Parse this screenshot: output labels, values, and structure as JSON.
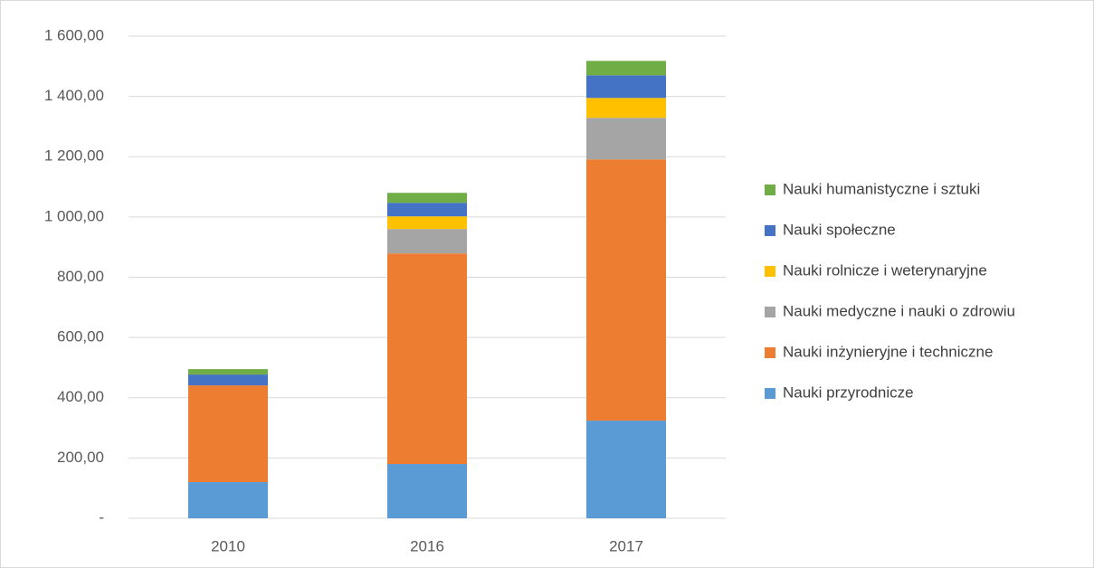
{
  "chart_data": {
    "type": "stacked_bar",
    "categories": [
      "2010",
      "2016",
      "2017"
    ],
    "series": [
      {
        "name": "Nauki przyrodnicze",
        "color": "#5b9bd5",
        "values": [
          120,
          180,
          324
        ]
      },
      {
        "name": "Nauki inżynieryjne i techniczne",
        "color": "#ed7d31",
        "values": [
          321,
          699,
          867
        ]
      },
      {
        "name": "Nauki medyczne i nauki o zdrowiu",
        "color": "#a5a5a5",
        "values": [
          0,
          81,
          138
        ]
      },
      {
        "name": "Nauki rolnicze i weterynaryjne",
        "color": "#ffc000",
        "values": [
          0,
          42,
          66
        ]
      },
      {
        "name": "Nauki społeczne",
        "color": "#4472c4",
        "values": [
          36,
          45,
          75
        ]
      },
      {
        "name": "Nauki humanistyczne i sztuki",
        "color": "#70ad47",
        "values": [
          18,
          33,
          48
        ]
      }
    ],
    "ylim": [
      0,
      1600
    ],
    "yticks": [
      {
        "value": 0,
        "label": "-"
      },
      {
        "value": 200,
        "label": "200,00"
      },
      {
        "value": 400,
        "label": "400,00"
      },
      {
        "value": 600,
        "label": "600,00"
      },
      {
        "value": 800,
        "label": "800,00"
      },
      {
        "value": 1000,
        "label": "1 000,00"
      },
      {
        "value": 1200,
        "label": "1 200,00"
      },
      {
        "value": 1400,
        "label": "1 400,00"
      },
      {
        "value": 1600,
        "label": "1 600,00"
      }
    ],
    "grid": true,
    "legend": "right"
  }
}
